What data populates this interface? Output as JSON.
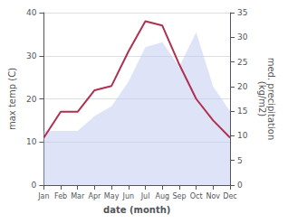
{
  "chart_data": {
    "type": "line",
    "categories": [
      "Jan",
      "Feb",
      "Mar",
      "Apr",
      "May",
      "Jun",
      "Jul",
      "Aug",
      "Sep",
      "Oct",
      "Nov",
      "Dec"
    ],
    "series": [
      {
        "type": "area",
        "color": "#c0c8f0",
        "axis": "y2",
        "values": [
          11,
          11,
          11,
          14,
          16,
          21,
          28,
          29,
          24,
          31,
          20,
          15
        ]
      },
      {
        "type": "line",
        "color": "#b03050",
        "values": [
          11,
          17,
          17,
          22,
          23,
          31,
          38,
          37,
          28,
          20,
          15,
          11
        ]
      }
    ],
    "xlabel": "date (month)",
    "ylabel": "max temp (C)",
    "y2label": "med. precipitation\n(kg/m2)",
    "ylim": [
      0,
      40
    ],
    "yticks": [
      0,
      10,
      20,
      30,
      40
    ],
    "y2lim": [
      0,
      35
    ],
    "y2ticks": [
      0,
      5,
      10,
      15,
      20,
      25,
      30,
      35
    ],
    "grid": true
  }
}
